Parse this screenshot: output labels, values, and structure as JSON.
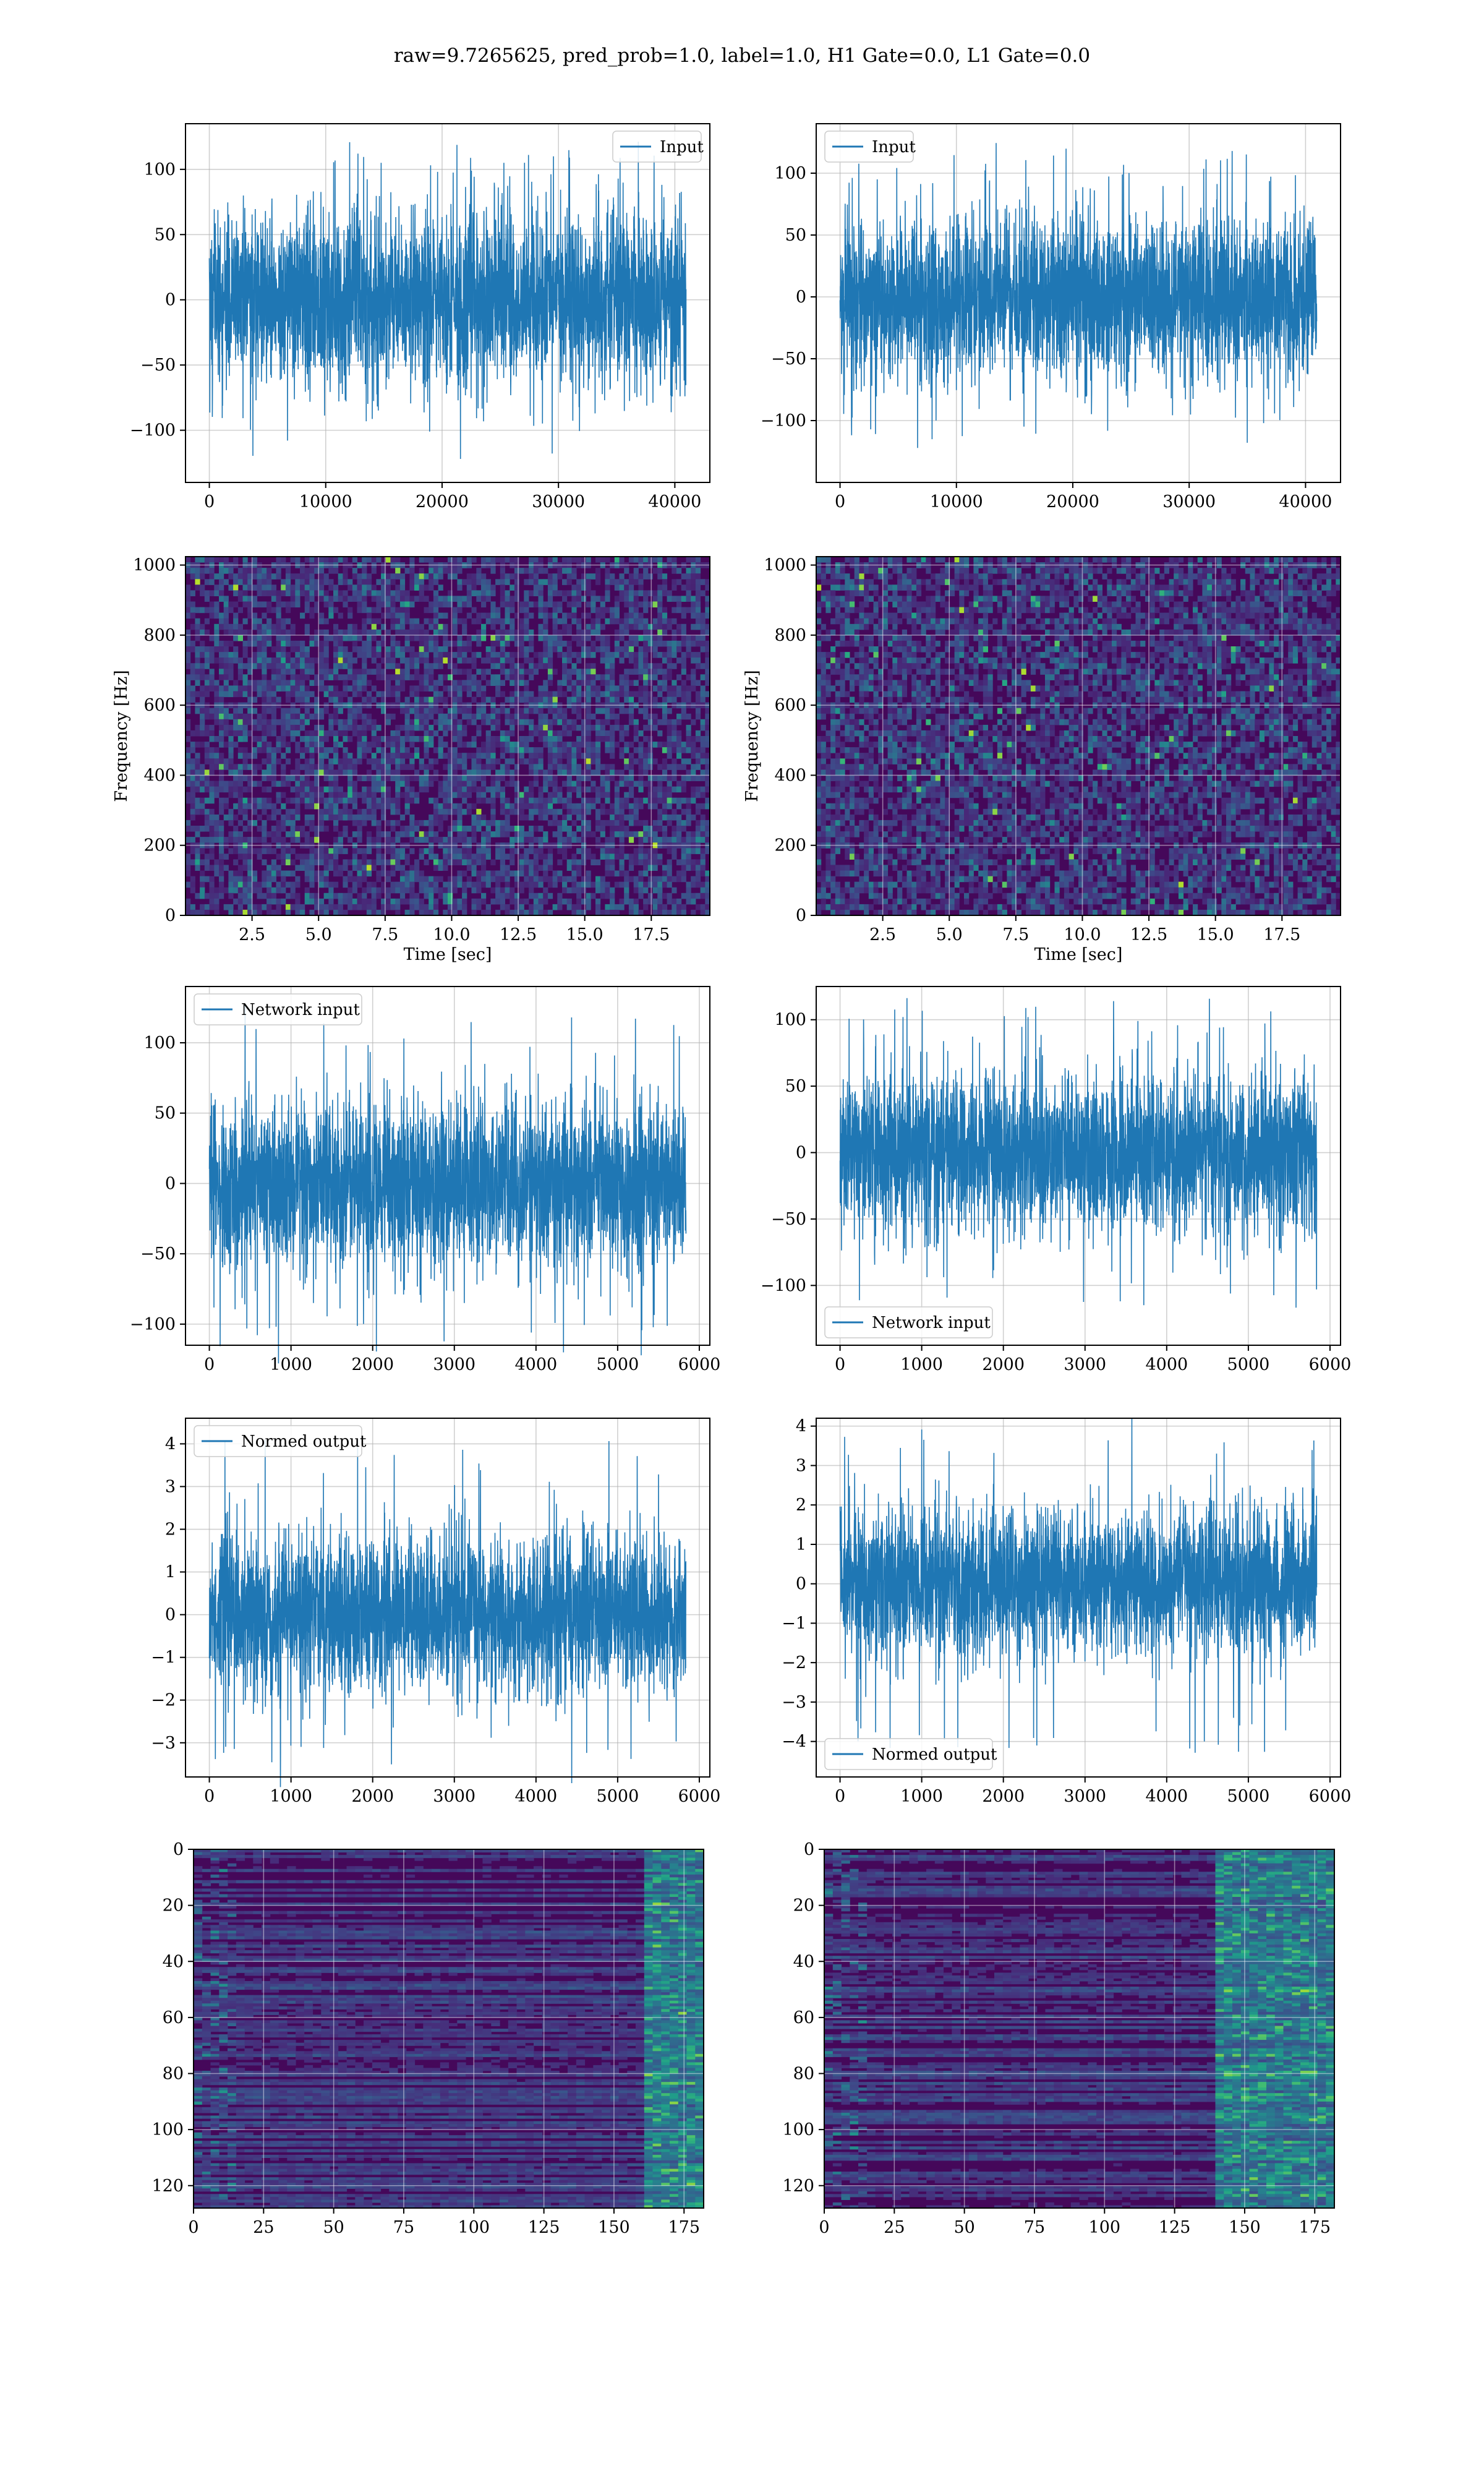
{
  "figure": {
    "title": "raw=9.7265625, pred_prob=1.0, label=1.0, H1 Gate=0.0, L1 Gate=0.0"
  },
  "colors": {
    "line": "#1f77b4",
    "grid": "#b0b0b0",
    "spine": "#000000"
  },
  "chart_data": [
    {
      "id": "h1-input",
      "type": "line",
      "series": [
        {
          "name": "Input",
          "length": 40960,
          "amplitude": 33,
          "peak": 122
        }
      ],
      "xlim": [
        -2048,
        43008
      ],
      "ylim": [
        -140,
        135
      ],
      "xticks": [
        0,
        10000,
        20000,
        30000,
        40000
      ],
      "yticks": [
        -100,
        -50,
        0,
        50,
        100
      ],
      "xticklabels": [
        "0",
        "10000",
        "20000",
        "30000",
        "40000"
      ],
      "yticklabels": [
        "−100",
        "−50",
        "0",
        "50",
        "100"
      ],
      "legend": "top-right",
      "grid": true,
      "xlabel": "",
      "ylabel": ""
    },
    {
      "id": "l1-input",
      "type": "line",
      "series": [
        {
          "name": "Input",
          "length": 40960,
          "amplitude": 33,
          "peak": 125
        }
      ],
      "xlim": [
        -2048,
        43008
      ],
      "ylim": [
        -150,
        140
      ],
      "xticks": [
        0,
        10000,
        20000,
        30000,
        40000
      ],
      "yticks": [
        -100,
        -50,
        0,
        50,
        100
      ],
      "xticklabels": [
        "0",
        "10000",
        "20000",
        "30000",
        "40000"
      ],
      "yticklabels": [
        "−100",
        "−50",
        "0",
        "50",
        "100"
      ],
      "legend": "top-left",
      "grid": true,
      "xlabel": "",
      "ylabel": ""
    },
    {
      "id": "h1-spectrogram",
      "type": "heatmap",
      "xlim": [
        0,
        19.7
      ],
      "ylim": [
        0,
        1024
      ],
      "xticks": [
        2.5,
        5.0,
        7.5,
        10.0,
        12.5,
        15.0,
        17.5
      ],
      "yticks": [
        0,
        200,
        400,
        600,
        800,
        1000
      ],
      "xticklabels": [
        "2.5",
        "5.0",
        "7.5",
        "10.0",
        "12.5",
        "15.0",
        "17.5"
      ],
      "yticklabels": [
        "0",
        "200",
        "400",
        "600",
        "800",
        "1000"
      ],
      "xlabel": "Time [sec]",
      "ylabel": "Frequency [Hz]",
      "grid": true,
      "colormap": "viridis"
    },
    {
      "id": "l1-spectrogram",
      "type": "heatmap",
      "xlim": [
        0,
        19.7
      ],
      "ylim": [
        0,
        1024
      ],
      "xticks": [
        2.5,
        5.0,
        7.5,
        10.0,
        12.5,
        15.0,
        17.5
      ],
      "yticks": [
        0,
        200,
        400,
        600,
        800,
        1000
      ],
      "xticklabels": [
        "2.5",
        "5.0",
        "7.5",
        "10.0",
        "12.5",
        "15.0",
        "17.5"
      ],
      "yticklabels": [
        "0",
        "200",
        "400",
        "600",
        "800",
        "1000"
      ],
      "xlabel": "Time [sec]",
      "ylabel": "Frequency [Hz]",
      "grid": true,
      "colormap": "viridis"
    },
    {
      "id": "h1-network-input",
      "type": "line",
      "series": [
        {
          "name": "Network input",
          "length": 5837,
          "amplitude": 30,
          "peak": 128
        }
      ],
      "xlim": [
        -292,
        6129
      ],
      "ylim": [
        -115,
        140
      ],
      "xticks": [
        0,
        1000,
        2000,
        3000,
        4000,
        5000,
        6000
      ],
      "yticks": [
        -100,
        -50,
        0,
        50,
        100
      ],
      "xticklabels": [
        "0",
        "1000",
        "2000",
        "3000",
        "4000",
        "5000",
        "6000"
      ],
      "yticklabels": [
        "−100",
        "−50",
        "0",
        "50",
        "100"
      ],
      "legend": "top-left",
      "grid": true,
      "xlabel": "",
      "ylabel": ""
    },
    {
      "id": "l1-network-input",
      "type": "line",
      "series": [
        {
          "name": "Network input",
          "length": 5837,
          "amplitude": 30,
          "peak": 117
        }
      ],
      "xlim": [
        -292,
        6129
      ],
      "ylim": [
        -145,
        125
      ],
      "xticks": [
        0,
        1000,
        2000,
        3000,
        4000,
        5000,
        6000
      ],
      "yticks": [
        -100,
        -50,
        0,
        50,
        100
      ],
      "xticklabels": [
        "0",
        "1000",
        "2000",
        "3000",
        "4000",
        "5000",
        "6000"
      ],
      "yticklabels": [
        "−100",
        "−50",
        "0",
        "50",
        "100"
      ],
      "legend": "bottom-left",
      "grid": true,
      "xlabel": "",
      "ylabel": ""
    },
    {
      "id": "h1-normed-output",
      "type": "line",
      "series": [
        {
          "name": "Normed output",
          "length": 5837,
          "amplitude": 0.95,
          "peak": 4.1
        }
      ],
      "xlim": [
        -292,
        6129
      ],
      "ylim": [
        -3.8,
        4.6
      ],
      "xticks": [
        0,
        1000,
        2000,
        3000,
        4000,
        5000,
        6000
      ],
      "yticks": [
        -3,
        -2,
        -1,
        0,
        1,
        2,
        3,
        4
      ],
      "xticklabels": [
        "0",
        "1000",
        "2000",
        "3000",
        "4000",
        "5000",
        "6000"
      ],
      "yticklabels": [
        "−3",
        "−2",
        "−1",
        "0",
        "1",
        "2",
        "3",
        "4"
      ],
      "legend": "top-left",
      "grid": true,
      "xlabel": "",
      "ylabel": ""
    },
    {
      "id": "l1-normed-output",
      "type": "line",
      "series": [
        {
          "name": "Normed output",
          "length": 5837,
          "amplitude": 0.95,
          "peak": 4.4
        }
      ],
      "xlim": [
        -292,
        6129
      ],
      "ylim": [
        -4.9,
        4.2
      ],
      "xticks": [
        0,
        1000,
        2000,
        3000,
        4000,
        5000,
        6000
      ],
      "yticks": [
        -4,
        -3,
        -2,
        -1,
        0,
        1,
        2,
        3,
        4
      ],
      "xticklabels": [
        "0",
        "1000",
        "2000",
        "3000",
        "4000",
        "5000",
        "6000"
      ],
      "yticklabels": [
        "−4",
        "−3",
        "−2",
        "−1",
        "0",
        "1",
        "2",
        "3",
        "4"
      ],
      "legend": "bottom-left",
      "grid": true,
      "xlabel": "",
      "ylabel": ""
    },
    {
      "id": "h1-feature-map",
      "type": "heatmap",
      "xlim": [
        0,
        182
      ],
      "ylim": [
        128,
        0
      ],
      "xticks": [
        0,
        25,
        50,
        75,
        100,
        125,
        150,
        175
      ],
      "yticks": [
        0,
        20,
        40,
        60,
        80,
        100,
        120
      ],
      "xticklabels": [
        "0",
        "25",
        "50",
        "75",
        "100",
        "125",
        "150",
        "175"
      ],
      "yticklabels": [
        "0",
        "20",
        "40",
        "60",
        "80",
        "100",
        "120"
      ],
      "xlabel": "",
      "ylabel": "",
      "grid": true,
      "colormap": "viridis"
    },
    {
      "id": "l1-feature-map",
      "type": "heatmap",
      "xlim": [
        0,
        182
      ],
      "ylim": [
        128,
        0
      ],
      "xticks": [
        0,
        25,
        50,
        75,
        100,
        125,
        150,
        175
      ],
      "yticks": [
        0,
        20,
        40,
        60,
        80,
        100,
        120
      ],
      "xticklabels": [
        "0",
        "25",
        "50",
        "75",
        "100",
        "125",
        "150",
        "175"
      ],
      "yticklabels": [
        "0",
        "20",
        "40",
        "60",
        "80",
        "100",
        "120"
      ],
      "xlabel": "",
      "ylabel": "",
      "grid": true,
      "colormap": "viridis"
    }
  ]
}
